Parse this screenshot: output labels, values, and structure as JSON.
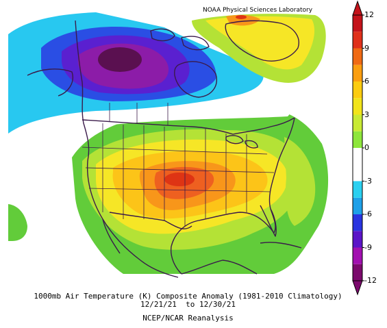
{
  "header": {
    "credit": "NOAA Physical Sciences Laboratory"
  },
  "caption": {
    "line1": "1000mb Air Temperature (K) Composite Anomaly (1981-2010 Climatology)",
    "line2": "12/21/21  to 12/30/21",
    "line3": "NCEP/NCAR Reanalysis"
  },
  "colorbar": {
    "ticks": [
      "12",
      "9",
      "6",
      "3",
      "0",
      "-3",
      "-6",
      "-9",
      "-12"
    ],
    "colors": [
      "#7b0a6d",
      "#a210b0",
      "#5b14c8",
      "#2a34e0",
      "#1ea0e8",
      "#2ad0f0",
      "#ffffff",
      "#ffffff",
      "#8ee63c",
      "#c8ea34",
      "#f2e41a",
      "#fccc10",
      "#fb9e10",
      "#f06a14",
      "#e0301a",
      "#c4131a"
    ]
  },
  "legend_colors": {
    "purple_dark": "#5a1050",
    "purple": "#8c1ca8",
    "violet": "#5a20d0",
    "blue": "#2a4ee4",
    "cyan": "#28c8f0",
    "green": "#62cc3a",
    "lime": "#b4e236",
    "yellow": "#f6e626",
    "gold": "#fcc418",
    "orange": "#f8961a",
    "red_orange": "#ee6020",
    "red": "#de3414"
  }
}
